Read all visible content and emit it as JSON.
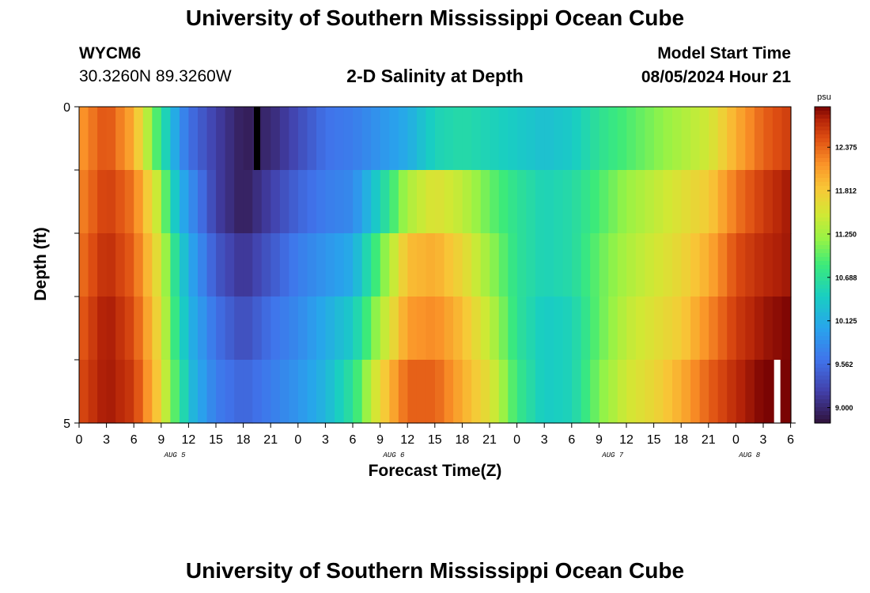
{
  "header": {
    "title": "University of Southern Mississippi Ocean Cube",
    "station_id": "WYCM6",
    "coordinates": "30.3260N  89.3260W",
    "subtitle": "2-D Salinity at Depth",
    "model_start_label": "Model Start Time",
    "model_start_value": "08/05/2024 Hour 21"
  },
  "footer": {
    "title": "University of Southern Mississippi Ocean Cube"
  },
  "chart_data": {
    "type": "heatmap",
    "title": "2-D Salinity at Depth",
    "xlabel": "Forecast Time(Z)",
    "ylabel": "Depth (ft)",
    "x_tick_labels": [
      "0",
      "3",
      "6",
      "9",
      "12",
      "15",
      "18",
      "21",
      "0",
      "3",
      "6",
      "9",
      "12",
      "15",
      "18",
      "21",
      "0",
      "3",
      "6",
      "9",
      "12",
      "15",
      "18",
      "21",
      "0",
      "3",
      "6"
    ],
    "day_labels": [
      {
        "label": "AUG 5",
        "tick_index": 3.5
      },
      {
        "label": "AUG 6",
        "tick_index": 11.5
      },
      {
        "label": "AUG 7",
        "tick_index": 19.5
      },
      {
        "label": "AUG 8",
        "tick_index": 24.5
      }
    ],
    "y_tick_labels": [
      {
        "value": 0,
        "label": "0"
      },
      {
        "value": 1,
        "label": ""
      },
      {
        "value": 2,
        "label": ""
      },
      {
        "value": 3,
        "label": ""
      },
      {
        "value": 4,
        "label": ""
      },
      {
        "value": 5,
        "label": "5"
      }
    ],
    "ylim": [
      0,
      5
    ],
    "x_range_hours": [
      0,
      78
    ],
    "depth_levels": 5,
    "time_steps": 78,
    "colorbar": {
      "unit": "psu",
      "tick_labels": [
        "12.375",
        "11.812",
        "11.250",
        "10.688",
        "10.125",
        "9.562",
        "9.000"
      ],
      "range": [
        8.8,
        12.9
      ]
    },
    "salinity_keyframes": {
      "hours": [
        0,
        3,
        6,
        9,
        10,
        11,
        12,
        15,
        18,
        21,
        24,
        27,
        30,
        33,
        36,
        39,
        42,
        45,
        48,
        51,
        54,
        57,
        60,
        63,
        66,
        69,
        72,
        75,
        78
      ],
      "levels": [
        [
          12.1,
          12.5,
          12.0,
          10.7,
          10.3,
          9.9,
          9.6,
          9.2,
          8.9,
          9.0,
          9.3,
          9.6,
          9.7,
          9.9,
          10.1,
          10.5,
          10.6,
          10.5,
          10.4,
          10.3,
          10.4,
          10.7,
          10.9,
          11.1,
          11.3,
          11.5,
          12.0,
          12.4,
          12.6
        ],
        [
          12.2,
          12.6,
          12.3,
          11.3,
          10.6,
          10.2,
          9.9,
          9.2,
          8.9,
          9.2,
          9.5,
          9.7,
          9.8,
          10.5,
          11.3,
          11.6,
          11.4,
          11.0,
          10.7,
          10.5,
          10.6,
          10.9,
          11.2,
          11.4,
          11.6,
          11.8,
          12.3,
          12.6,
          12.8
        ],
        [
          12.3,
          12.7,
          12.4,
          11.5,
          10.9,
          10.5,
          10.1,
          9.4,
          9.1,
          9.4,
          9.7,
          9.9,
          10.1,
          11.0,
          11.9,
          12.0,
          11.7,
          11.2,
          10.7,
          10.5,
          10.6,
          11.0,
          11.3,
          11.5,
          11.7,
          12.0,
          12.5,
          12.7,
          12.8
        ],
        [
          12.4,
          12.8,
          12.5,
          11.6,
          11.0,
          10.6,
          10.2,
          9.6,
          9.3,
          9.6,
          9.8,
          10.1,
          10.4,
          11.3,
          12.1,
          12.2,
          11.9,
          11.4,
          10.7,
          10.4,
          10.5,
          11.0,
          11.4,
          11.6,
          11.8,
          12.2,
          12.6,
          12.8,
          12.9
        ],
        [
          12.5,
          12.8,
          12.6,
          11.7,
          11.1,
          10.8,
          10.3,
          9.7,
          9.5,
          9.7,
          9.9,
          10.2,
          10.7,
          11.7,
          12.4,
          12.4,
          12.0,
          11.6,
          10.8,
          10.4,
          10.5,
          11.1,
          11.5,
          11.7,
          12.0,
          12.4,
          12.7,
          12.9,
          12.9
        ]
      ]
    },
    "markers": [
      {
        "hour": 19.5,
        "depth_band": 0,
        "color": "#000000"
      },
      {
        "hour": 76.5,
        "depth_band": 4,
        "color": "#ffffff"
      }
    ]
  }
}
